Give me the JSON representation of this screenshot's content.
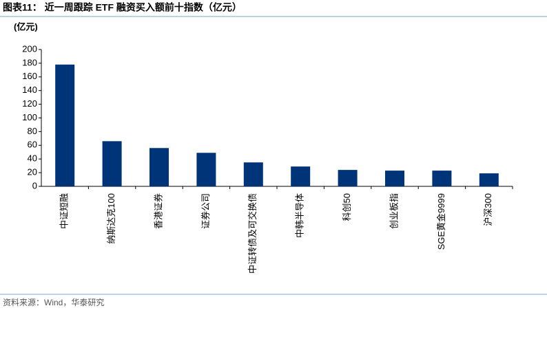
{
  "chart_data": {
    "type": "bar",
    "title": "图表11： 近一周跟踪 ETF 融资买入额前十指数（亿元）",
    "y_label": "(亿元)",
    "source": "资料来源：Wind，华泰研究",
    "categories": [
      "中证短融",
      "纳斯达克100",
      "香港证券",
      "证券公司",
      "中证转债及可交换债",
      "中韩半导体",
      "科创50",
      "创业板指",
      "SGE黄金9999",
      "沪深300"
    ],
    "values": [
      178,
      66,
      56,
      49,
      35,
      29,
      24,
      23,
      23,
      19
    ],
    "color": "#003478",
    "ylim": [
      0,
      200
    ],
    "yticks": [
      0,
      20,
      40,
      60,
      80,
      100,
      120,
      140,
      160,
      180,
      200
    ],
    "grid": false
  }
}
